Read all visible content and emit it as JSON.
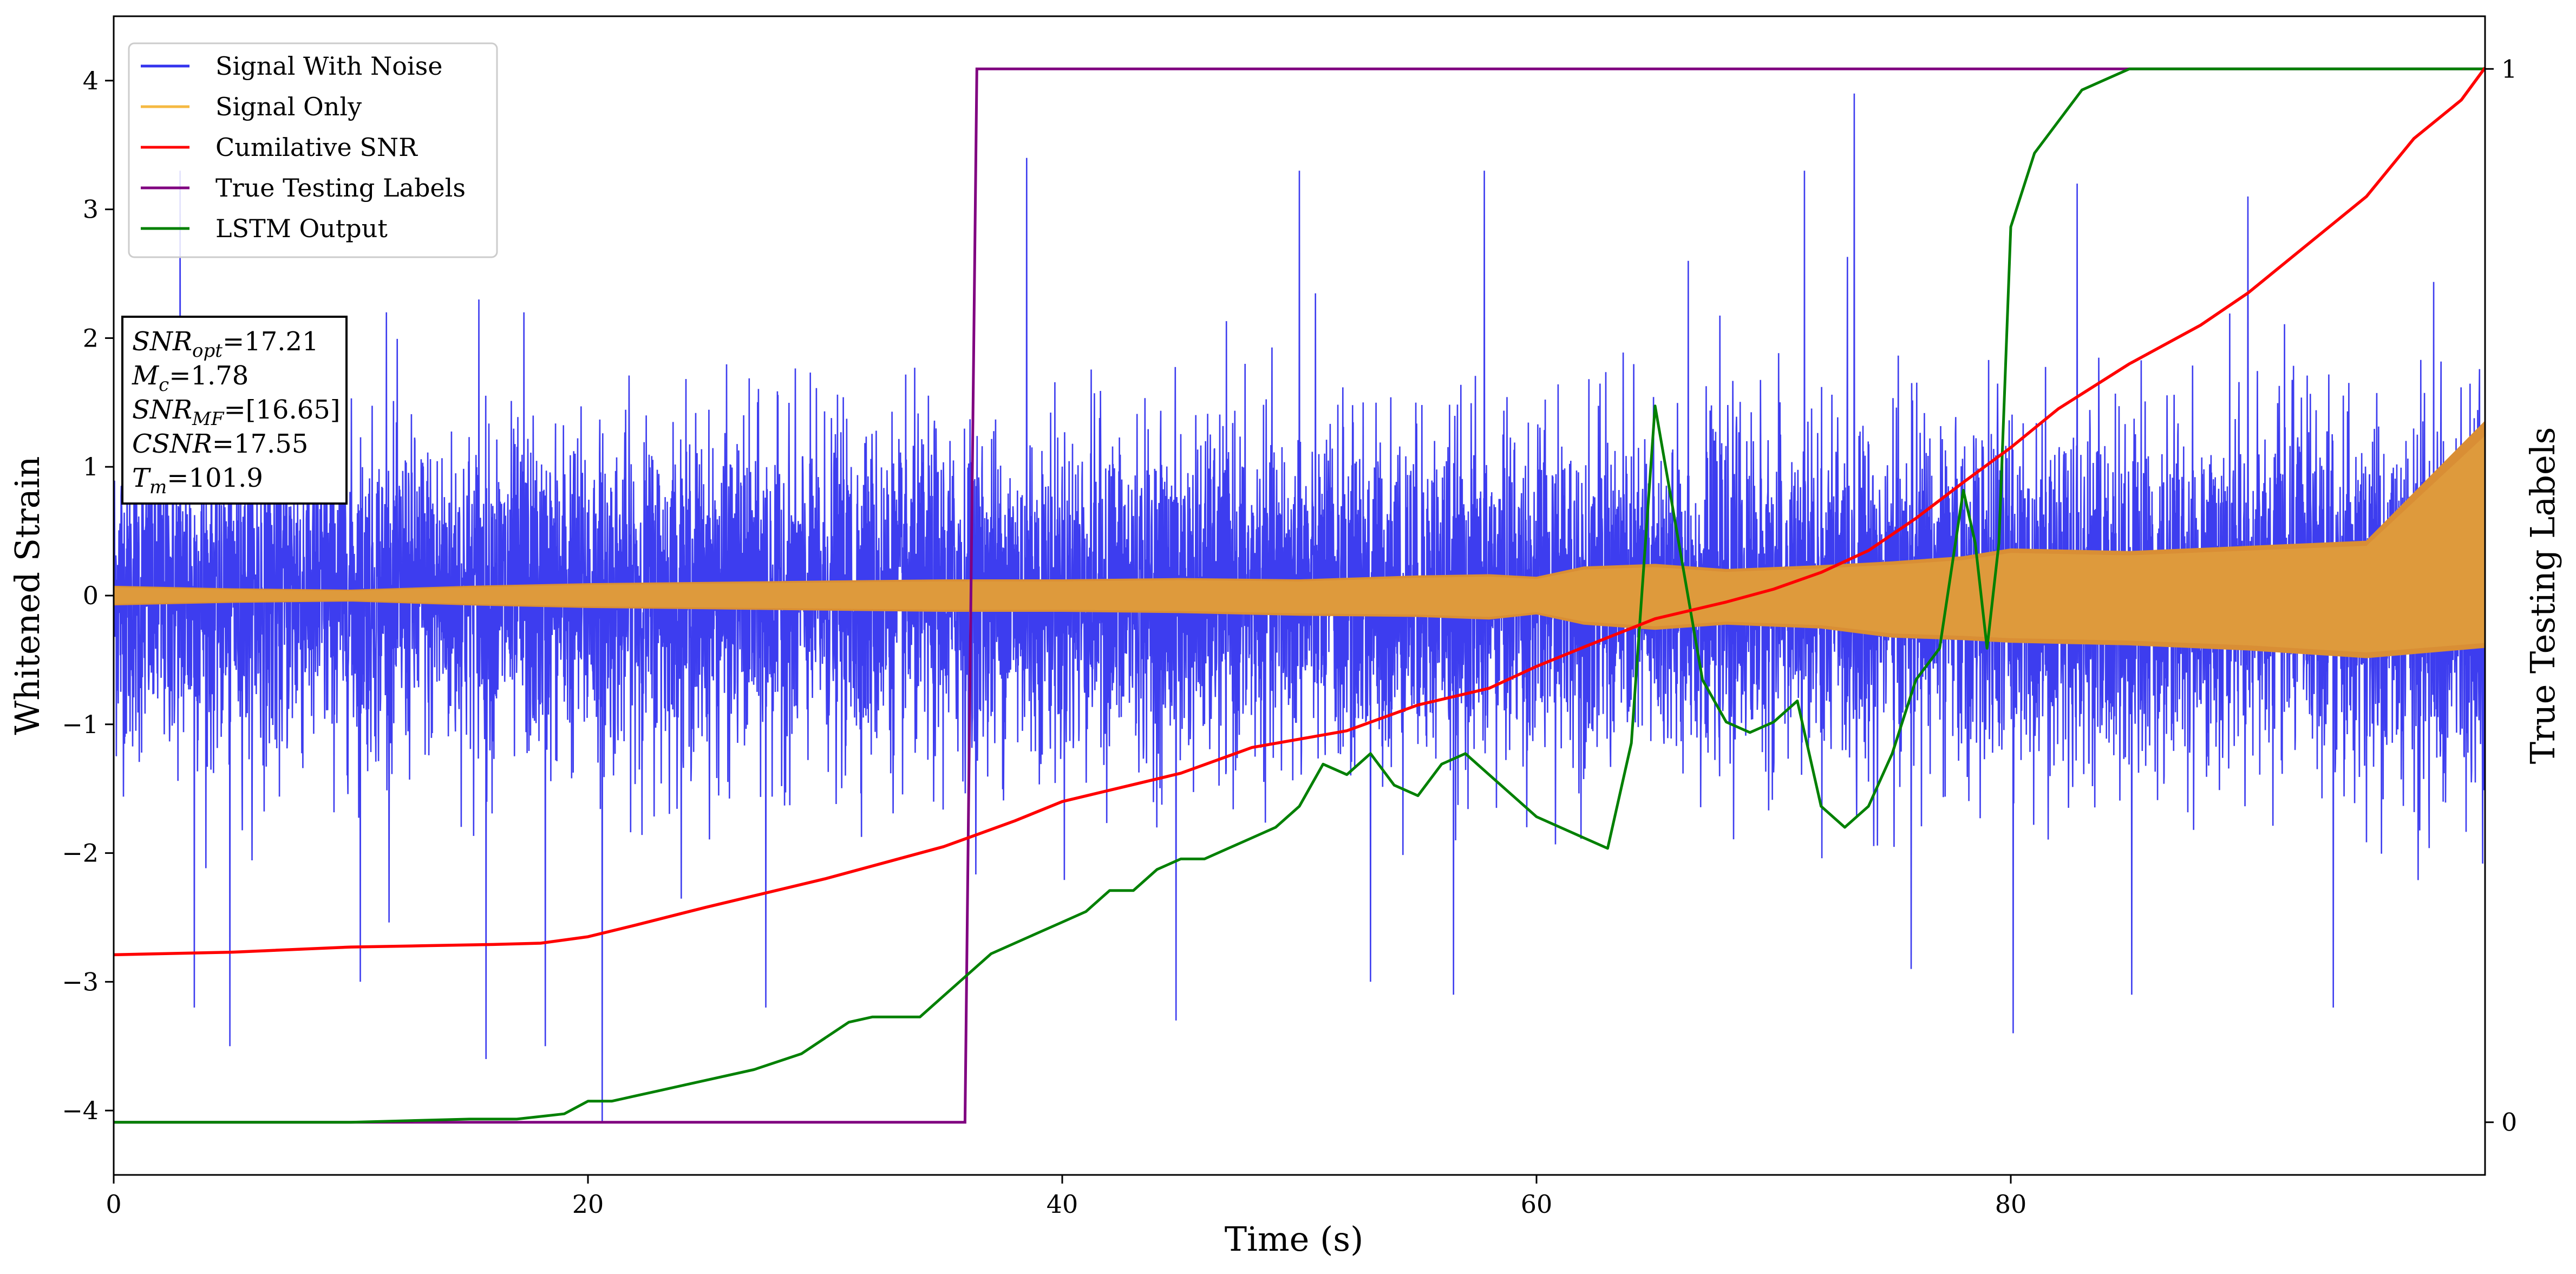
{
  "chart_data": {
    "type": "line",
    "xlabel": "Time (s)",
    "ylabel": "Whitened Strain",
    "ylabel_right": "True Testing Labels",
    "xlim": [
      0,
      100
    ],
    "ylim": [
      -4.5,
      4.5
    ],
    "ylim_right": [
      -0.05,
      1.05
    ],
    "x_ticks": [
      0,
      20,
      40,
      60,
      80
    ],
    "y_ticks": [
      -4,
      -3,
      -2,
      -1,
      0,
      1,
      2,
      3,
      4
    ],
    "y_ticks_right": [
      0,
      1
    ],
    "legend": {
      "position": "top-left",
      "entries": [
        {
          "name": "Signal With Noise",
          "color": "#3333ee"
        },
        {
          "name": "Signal Only",
          "color": "#f5b942"
        },
        {
          "name": "Cumilative SNR",
          "color": "#ff0000"
        },
        {
          "name": "True Testing Labels",
          "color": "#800080"
        },
        {
          "name": "LSTM Output",
          "color": "#008000"
        }
      ]
    },
    "annotation": {
      "lines": [
        {
          "sym": "SNR",
          "sub": "opt",
          "val": "=17.21"
        },
        {
          "sym": "M",
          "sub": "c",
          "val": "=1.78"
        },
        {
          "sym": "SNR",
          "sub": "MF",
          "val": "=[16.65]"
        },
        {
          "sym": "CSNR",
          "sub": "",
          "val": "=17.55"
        },
        {
          "sym": "T",
          "sub": "m",
          "val": "=101.9"
        }
      ]
    },
    "series": [
      {
        "name": "Signal With Noise",
        "axis": "left",
        "color": "#3333ee",
        "style": "dense-noise",
        "envelope_typical": [
          -1.2,
          1.3
        ],
        "spikes_high": [
          [
            2.8,
            3.3
          ],
          [
            11.5,
            2.2
          ],
          [
            15.4,
            2.3
          ],
          [
            17.3,
            2.2
          ],
          [
            38.5,
            3.4
          ],
          [
            50.0,
            3.3
          ],
          [
            57.8,
            3.3
          ],
          [
            66.4,
            2.6
          ],
          [
            71.3,
            3.3
          ],
          [
            73.4,
            3.9
          ],
          [
            82.8,
            3.2
          ],
          [
            90.0,
            3.1
          ]
        ],
        "spikes_low": [
          [
            3.4,
            -3.2
          ],
          [
            4.9,
            -3.5
          ],
          [
            10.4,
            -3.0
          ],
          [
            15.7,
            -3.6
          ],
          [
            18.2,
            -3.5
          ],
          [
            20.6,
            -4.1
          ],
          [
            27.5,
            -3.2
          ],
          [
            44.8,
            -3.3
          ],
          [
            53.0,
            -3.0
          ],
          [
            56.5,
            -3.1
          ],
          [
            75.8,
            -2.9
          ],
          [
            80.1,
            -3.4
          ],
          [
            85.1,
            -3.1
          ],
          [
            93.6,
            -3.2
          ]
        ]
      },
      {
        "name": "Signal Only",
        "axis": "left",
        "color": "#f5b942",
        "style": "chirp-envelope",
        "envelope": {
          "x": [
            0,
            5,
            10,
            15,
            20,
            25,
            30,
            35,
            40,
            45,
            50,
            55,
            58,
            60,
            62,
            65,
            68,
            72,
            75,
            78,
            80,
            85,
            90,
            95,
            100
          ],
          "upper": [
            0.07,
            0.05,
            0.04,
            0.07,
            0.09,
            0.1,
            0.11,
            0.12,
            0.12,
            0.13,
            0.12,
            0.15,
            0.16,
            0.14,
            0.22,
            0.24,
            0.2,
            0.23,
            0.26,
            0.3,
            0.36,
            0.34,
            0.38,
            0.42,
            1.35
          ],
          "lower": [
            -0.07,
            -0.05,
            -0.04,
            -0.07,
            -0.09,
            -0.1,
            -0.11,
            -0.12,
            -0.12,
            -0.13,
            -0.15,
            -0.16,
            -0.18,
            -0.14,
            -0.22,
            -0.26,
            -0.22,
            -0.25,
            -0.32,
            -0.34,
            -0.36,
            -0.38,
            -0.42,
            -0.48,
            -0.4
          ]
        }
      },
      {
        "name": "Cumilative SNR",
        "axis": "left",
        "color": "#ff0000",
        "x": [
          0,
          5,
          10,
          13,
          16,
          18,
          20,
          22,
          25,
          30,
          35,
          38,
          40,
          45,
          48,
          52,
          55,
          58,
          60,
          62,
          65,
          68,
          70,
          72,
          74,
          76,
          78,
          80,
          82,
          85,
          88,
          90,
          92,
          95,
          97,
          99,
          100
        ],
        "y": [
          -2.79,
          -2.77,
          -2.73,
          -2.72,
          -2.71,
          -2.7,
          -2.65,
          -2.56,
          -2.42,
          -2.2,
          -1.95,
          -1.75,
          -1.6,
          -1.38,
          -1.18,
          -1.05,
          -0.85,
          -0.72,
          -0.55,
          -0.4,
          -0.18,
          -0.05,
          0.05,
          0.18,
          0.35,
          0.6,
          0.88,
          1.15,
          1.45,
          1.8,
          2.1,
          2.35,
          2.65,
          3.1,
          3.55,
          3.85,
          4.1
        ]
      },
      {
        "name": "True Testing Labels",
        "axis": "right",
        "color": "#800080",
        "x": [
          0,
          35.9,
          36.4,
          100
        ],
        "y": [
          0,
          0,
          1,
          1
        ]
      },
      {
        "name": "LSTM Output",
        "axis": "right",
        "color": "#008000",
        "x": [
          0,
          10,
          15,
          17,
          19,
          20,
          21,
          22,
          23,
          25,
          27,
          29,
          30,
          31,
          32,
          33,
          34,
          35,
          36,
          37,
          38,
          39,
          40,
          41,
          42,
          43,
          44,
          45,
          46,
          47,
          48,
          49,
          50,
          51,
          52,
          53,
          54,
          55,
          56,
          57,
          58,
          59,
          60,
          61,
          62,
          63,
          64,
          65,
          66,
          67,
          68,
          69,
          70,
          71,
          72,
          73,
          74,
          75,
          76,
          77,
          78,
          78.5,
          79,
          79.5,
          80,
          81,
          82,
          83,
          84,
          85,
          86,
          88,
          90,
          100
        ],
        "y": [
          0,
          0,
          0.003,
          0.003,
          0.008,
          0.02,
          0.02,
          0.025,
          0.03,
          0.04,
          0.05,
          0.065,
          0.08,
          0.095,
          0.1,
          0.1,
          0.1,
          0.12,
          0.14,
          0.16,
          0.17,
          0.18,
          0.19,
          0.2,
          0.22,
          0.22,
          0.24,
          0.25,
          0.25,
          0.26,
          0.27,
          0.28,
          0.3,
          0.34,
          0.33,
          0.35,
          0.32,
          0.31,
          0.34,
          0.35,
          0.33,
          0.31,
          0.29,
          0.28,
          0.27,
          0.26,
          0.36,
          0.68,
          0.55,
          0.42,
          0.38,
          0.37,
          0.38,
          0.4,
          0.3,
          0.28,
          0.3,
          0.35,
          0.42,
          0.45,
          0.6,
          0.55,
          0.45,
          0.55,
          0.85,
          0.92,
          0.95,
          0.98,
          0.99,
          1.0,
          1.0,
          1.0,
          1.0,
          1.0
        ]
      }
    ]
  }
}
